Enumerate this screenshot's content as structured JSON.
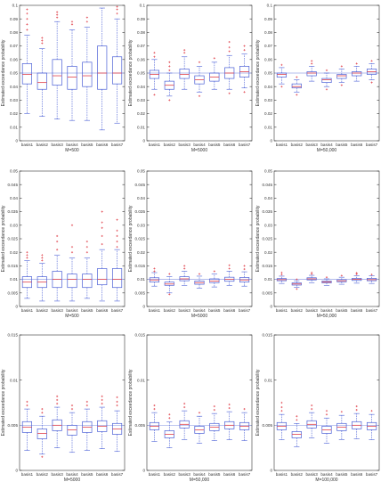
{
  "chart_data": [
    {
      "type": "boxplot",
      "row": 0,
      "col": 0,
      "ylabel": "Estimated exceedance probability",
      "xlabel": "M=500",
      "ylim": [
        0,
        0.1
      ],
      "yticks": [
        "0",
        "0.01",
        "0.02",
        "0.03",
        "0.04",
        "0.05",
        "0.06",
        "0.07",
        "0.08",
        "0.09",
        "0.1"
      ],
      "reference_line": 0.05,
      "categories": [
        "basis1",
        "basis2",
        "basis3",
        "basis4",
        "basis5",
        "basis6",
        "basis7"
      ],
      "boxes": [
        {
          "min": 0.02,
          "q1": 0.042,
          "median": 0.049,
          "q3": 0.057,
          "max": 0.078,
          "outliers": [
            0.082,
            0.086,
            0.09,
            0.094,
            0.097
          ]
        },
        {
          "min": 0.018,
          "q1": 0.038,
          "median": 0.043,
          "q3": 0.05,
          "max": 0.068,
          "outliers": [
            0.072,
            0.074,
            0.076
          ]
        },
        {
          "min": 0.016,
          "q1": 0.041,
          "median": 0.048,
          "q3": 0.06,
          "max": 0.088,
          "outliers": [
            0.091,
            0.093,
            0.095
          ]
        },
        {
          "min": 0.015,
          "q1": 0.038,
          "median": 0.047,
          "q3": 0.055,
          "max": 0.082,
          "outliers": [
            0.086,
            0.088
          ]
        },
        {
          "min": 0.015,
          "q1": 0.04,
          "median": 0.048,
          "q3": 0.058,
          "max": 0.084,
          "outliers": [
            0.088,
            0.091
          ]
        },
        {
          "min": 0.008,
          "q1": 0.038,
          "median": 0.05,
          "q3": 0.07,
          "max": 0.098,
          "outliers": []
        },
        {
          "min": 0.013,
          "q1": 0.042,
          "median": 0.05,
          "q3": 0.062,
          "max": 0.09,
          "outliers": [
            0.094,
            0.097,
            0.099
          ]
        }
      ]
    },
    {
      "type": "boxplot",
      "row": 0,
      "col": 1,
      "ylabel": "Estimated exceedance probability",
      "xlabel": "M=5000",
      "ylim": [
        0,
        0.1
      ],
      "yticks": [
        "0",
        "0.01",
        "0.02",
        "0.03",
        "0.04",
        "0.05",
        "0.06",
        "0.07",
        "0.08",
        "0.09",
        "0.1"
      ],
      "reference_line": 0.05,
      "categories": [
        "basis1",
        "basis2",
        "basis3",
        "basis4",
        "basis5",
        "basis6",
        "basis7"
      ],
      "boxes": [
        {
          "min": 0.038,
          "q1": 0.046,
          "median": 0.049,
          "q3": 0.052,
          "max": 0.06,
          "outliers": [
            0.034,
            0.062,
            0.065
          ]
        },
        {
          "min": 0.033,
          "q1": 0.038,
          "median": 0.041,
          "q3": 0.044,
          "max": 0.05,
          "outliers": [
            0.03,
            0.052,
            0.055,
            0.058
          ]
        },
        {
          "min": 0.038,
          "q1": 0.046,
          "median": 0.049,
          "q3": 0.053,
          "max": 0.062,
          "outliers": [
            0.065,
            0.067
          ]
        },
        {
          "min": 0.036,
          "q1": 0.042,
          "median": 0.045,
          "q3": 0.048,
          "max": 0.055,
          "outliers": [
            0.033,
            0.058
          ]
        },
        {
          "min": 0.038,
          "q1": 0.044,
          "median": 0.047,
          "q3": 0.05,
          "max": 0.058,
          "outliers": [
            0.061
          ]
        },
        {
          "min": 0.038,
          "q1": 0.046,
          "median": 0.05,
          "q3": 0.054,
          "max": 0.063,
          "outliers": [
            0.035,
            0.066,
            0.069,
            0.073
          ]
        },
        {
          "min": 0.039,
          "q1": 0.047,
          "median": 0.051,
          "q3": 0.055,
          "max": 0.064,
          "outliers": [
            0.036,
            0.067,
            0.07
          ]
        }
      ]
    },
    {
      "type": "boxplot",
      "row": 0,
      "col": 2,
      "ylabel": "Estimated exceedance probability",
      "xlabel": "M=50,000",
      "ylim": [
        0,
        0.1
      ],
      "yticks": [
        "0",
        "0.01",
        "0.02",
        "0.03",
        "0.04",
        "0.05",
        "0.06",
        "0.07",
        "0.08",
        "0.09",
        "0.1"
      ],
      "reference_line": 0.05,
      "categories": [
        "basis1",
        "basis2",
        "basis3",
        "basis4",
        "basis5",
        "basis6",
        "basis7"
      ],
      "boxes": [
        {
          "min": 0.042,
          "q1": 0.047,
          "median": 0.049,
          "q3": 0.05,
          "max": 0.054,
          "outliers": [
            0.04,
            0.056
          ]
        },
        {
          "min": 0.036,
          "q1": 0.039,
          "median": 0.04,
          "q3": 0.042,
          "max": 0.045,
          "outliers": [
            0.034,
            0.047
          ]
        },
        {
          "min": 0.044,
          "q1": 0.048,
          "median": 0.05,
          "q3": 0.051,
          "max": 0.055,
          "outliers": [
            0.057,
            0.059
          ]
        },
        {
          "min": 0.04,
          "q1": 0.043,
          "median": 0.045,
          "q3": 0.046,
          "max": 0.05,
          "outliers": [
            0.038,
            0.052
          ]
        },
        {
          "min": 0.043,
          "q1": 0.046,
          "median": 0.048,
          "q3": 0.049,
          "max": 0.053,
          "outliers": [
            0.041,
            0.055
          ]
        },
        {
          "min": 0.044,
          "q1": 0.048,
          "median": 0.05,
          "q3": 0.051,
          "max": 0.055,
          "outliers": [
            0.057
          ]
        },
        {
          "min": 0.045,
          "q1": 0.049,
          "median": 0.051,
          "q3": 0.053,
          "max": 0.057,
          "outliers": [
            0.043,
            0.059
          ]
        }
      ]
    },
    {
      "type": "boxplot",
      "row": 1,
      "col": 0,
      "ylabel": "Estimated exceedance probability",
      "xlabel": "M=500",
      "ylim": [
        0,
        0.05
      ],
      "yticks": [
        "0",
        "0.005",
        "0.01",
        "0.015",
        "0.02",
        "0.025",
        "0.03",
        "0.035",
        "0.04",
        "0.045",
        "0.05"
      ],
      "reference_line": 0.01,
      "categories": [
        "basis1",
        "basis2",
        "basis3",
        "basis4",
        "basis5",
        "basis6",
        "basis7"
      ],
      "boxes": [
        {
          "min": 0.003,
          "q1": 0.007,
          "median": 0.009,
          "q3": 0.011,
          "max": 0.017,
          "outliers": [
            0.018,
            0.019,
            0.02
          ]
        },
        {
          "min": 0.002,
          "q1": 0.007,
          "median": 0.009,
          "q3": 0.011,
          "max": 0.016,
          "outliers": [
            0.017,
            0.018,
            0.019
          ]
        },
        {
          "min": 0.002,
          "q1": 0.007,
          "median": 0.01,
          "q3": 0.013,
          "max": 0.019,
          "outliers": [
            0.021,
            0.024,
            0.026
          ]
        },
        {
          "min": 0.002,
          "q1": 0.007,
          "median": 0.01,
          "q3": 0.012,
          "max": 0.018,
          "outliers": [
            0.02,
            0.022,
            0.03
          ]
        },
        {
          "min": 0.003,
          "q1": 0.007,
          "median": 0.01,
          "q3": 0.012,
          "max": 0.018,
          "outliers": [
            0.02,
            0.022,
            0.024
          ]
        },
        {
          "min": 0.002,
          "q1": 0.008,
          "median": 0.01,
          "q3": 0.014,
          "max": 0.021,
          "outliers": [
            0.023,
            0.026,
            0.029,
            0.031,
            0.035
          ]
        },
        {
          "min": 0.002,
          "q1": 0.007,
          "median": 0.01,
          "q3": 0.014,
          "max": 0.021,
          "outliers": [
            0.022,
            0.024,
            0.026,
            0.028,
            0.032
          ]
        }
      ]
    },
    {
      "type": "boxplot",
      "row": 1,
      "col": 1,
      "ylabel": "Estimated exceedance probability",
      "xlabel": "M=5000",
      "ylim": [
        0,
        0.05
      ],
      "yticks": [
        "0",
        "0.005",
        "0.01",
        "0.015",
        "0.02",
        "0.025",
        "0.03",
        "0.035",
        "0.04",
        "0.045",
        "0.05"
      ],
      "reference_line": 0.01,
      "categories": [
        "basis1",
        "basis2",
        "basis3",
        "basis4",
        "basis5",
        "basis6",
        "basis7"
      ],
      "boxes": [
        {
          "min": 0.0075,
          "q1": 0.009,
          "median": 0.0098,
          "q3": 0.0106,
          "max": 0.0125,
          "outliers": [
            0.013,
            0.014
          ]
        },
        {
          "min": 0.005,
          "q1": 0.0078,
          "median": 0.0083,
          "q3": 0.009,
          "max": 0.011,
          "outliers": [
            0.0045,
            0.012
          ]
        },
        {
          "min": 0.0078,
          "q1": 0.0095,
          "median": 0.0102,
          "q3": 0.011,
          "max": 0.013,
          "outliers": [
            0.014,
            0.015
          ]
        },
        {
          "min": 0.0068,
          "q1": 0.0082,
          "median": 0.0088,
          "q3": 0.0094,
          "max": 0.0112,
          "outliers": [
            0.012
          ]
        },
        {
          "min": 0.0072,
          "q1": 0.0088,
          "median": 0.0094,
          "q3": 0.0102,
          "max": 0.012,
          "outliers": [
            0.013
          ]
        },
        {
          "min": 0.0078,
          "q1": 0.0093,
          "median": 0.01,
          "q3": 0.0108,
          "max": 0.013,
          "outliers": [
            0.014,
            0.0152
          ]
        },
        {
          "min": 0.0075,
          "q1": 0.009,
          "median": 0.0098,
          "q3": 0.0107,
          "max": 0.0128,
          "outliers": [
            0.0138,
            0.015
          ]
        }
      ]
    },
    {
      "type": "boxplot",
      "row": 1,
      "col": 2,
      "ylabel": "Estimated exceedance probability",
      "xlabel": "M=50,000",
      "ylim": [
        0,
        0.05
      ],
      "yticks": [
        "0",
        "0.005",
        "0.01",
        "0.015",
        "0.02",
        "0.025",
        "0.03",
        "0.035",
        "0.04",
        "0.045",
        "0.05"
      ],
      "reference_line": 0.01,
      "categories": [
        "basis1",
        "basis2",
        "basis3",
        "basis4",
        "basis5",
        "basis6",
        "basis7"
      ],
      "boxes": [
        {
          "min": 0.0085,
          "q1": 0.0095,
          "median": 0.0099,
          "q3": 0.0103,
          "max": 0.0112,
          "outliers": [
            0.0118,
            0.0125
          ]
        },
        {
          "min": 0.007,
          "q1": 0.0079,
          "median": 0.0083,
          "q3": 0.0087,
          "max": 0.0095,
          "outliers": [
            0.0065,
            0.01
          ]
        },
        {
          "min": 0.0088,
          "q1": 0.0098,
          "median": 0.0102,
          "q3": 0.0106,
          "max": 0.0115,
          "outliers": [
            0.012,
            0.0125
          ]
        },
        {
          "min": 0.0078,
          "q1": 0.0087,
          "median": 0.009,
          "q3": 0.0094,
          "max": 0.0102,
          "outliers": [
            0.0108
          ]
        },
        {
          "min": 0.0082,
          "q1": 0.0091,
          "median": 0.0095,
          "q3": 0.0099,
          "max": 0.0108,
          "outliers": [
            0.0114
          ]
        },
        {
          "min": 0.0086,
          "q1": 0.0096,
          "median": 0.01,
          "q3": 0.0104,
          "max": 0.0113,
          "outliers": [
            0.0119,
            0.0124
          ]
        },
        {
          "min": 0.0085,
          "q1": 0.0095,
          "median": 0.0099,
          "q3": 0.0104,
          "max": 0.0113,
          "outliers": [
            0.0118
          ]
        }
      ]
    },
    {
      "type": "boxplot",
      "row": 2,
      "col": 0,
      "ylabel": "Estimated exceedance probability",
      "xlabel": "M=5000",
      "ylim": [
        0,
        0.015
      ],
      "yticks": [
        "0",
        "0.005",
        "0.01",
        "0.015"
      ],
      "reference_line": 0.005,
      "categories": [
        "basis1",
        "basis2",
        "basis3",
        "basis4",
        "basis5",
        "basis6",
        "basis7"
      ],
      "boxes": [
        {
          "min": 0.0022,
          "q1": 0.0042,
          "median": 0.0048,
          "q3": 0.0054,
          "max": 0.0068,
          "outliers": [
            0.0072,
            0.0076
          ]
        },
        {
          "min": 0.0018,
          "q1": 0.0035,
          "median": 0.0041,
          "q3": 0.0046,
          "max": 0.006,
          "outliers": [
            0.0015,
            0.0064,
            0.0068
          ]
        },
        {
          "min": 0.0025,
          "q1": 0.0044,
          "median": 0.005,
          "q3": 0.0056,
          "max": 0.007,
          "outliers": [
            0.0074,
            0.0078,
            0.0082
          ]
        },
        {
          "min": 0.002,
          "q1": 0.0039,
          "median": 0.0045,
          "q3": 0.005,
          "max": 0.0064,
          "outliers": [
            0.0068,
            0.0072
          ]
        },
        {
          "min": 0.0022,
          "q1": 0.0042,
          "median": 0.0048,
          "q3": 0.0054,
          "max": 0.0068,
          "outliers": [
            0.0072,
            0.0076
          ]
        },
        {
          "min": 0.0024,
          "q1": 0.0043,
          "median": 0.0049,
          "q3": 0.0055,
          "max": 0.007,
          "outliers": [
            0.0074,
            0.0078,
            0.0082
          ]
        },
        {
          "min": 0.0021,
          "q1": 0.004,
          "median": 0.0046,
          "q3": 0.0052,
          "max": 0.0066,
          "outliers": [
            0.0072,
            0.0076,
            0.0081
          ]
        }
      ]
    },
    {
      "type": "boxplot",
      "row": 2,
      "col": 1,
      "ylabel": "Estimated exceedance probability",
      "xlabel": "M=50,000",
      "ylim": [
        0,
        0.015
      ],
      "yticks": [
        "0",
        "0.005",
        "0.01",
        "0.015"
      ],
      "reference_line": 0.005,
      "categories": [
        "basis1",
        "basis2",
        "basis3",
        "basis4",
        "basis5",
        "basis6",
        "basis7"
      ],
      "boxes": [
        {
          "min": 0.0032,
          "q1": 0.0045,
          "median": 0.0049,
          "q3": 0.0053,
          "max": 0.0064,
          "outliers": [
            0.0068,
            0.0072
          ]
        },
        {
          "min": 0.0025,
          "q1": 0.0036,
          "median": 0.004,
          "q3": 0.0044,
          "max": 0.0054,
          "outliers": [
            0.0058,
            0.0062
          ]
        },
        {
          "min": 0.0034,
          "q1": 0.0047,
          "median": 0.0051,
          "q3": 0.0055,
          "max": 0.0066,
          "outliers": [
            0.007,
            0.0074
          ]
        },
        {
          "min": 0.003,
          "q1": 0.0041,
          "median": 0.0045,
          "q3": 0.0049,
          "max": 0.006,
          "outliers": [
            0.0064
          ]
        },
        {
          "min": 0.0033,
          "q1": 0.0044,
          "median": 0.0048,
          "q3": 0.0052,
          "max": 0.0063,
          "outliers": [
            0.0067,
            0.0071
          ]
        },
        {
          "min": 0.0034,
          "q1": 0.0046,
          "median": 0.005,
          "q3": 0.0054,
          "max": 0.0065,
          "outliers": [
            0.0069,
            0.0073
          ]
        },
        {
          "min": 0.0033,
          "q1": 0.0045,
          "median": 0.0049,
          "q3": 0.0053,
          "max": 0.0064,
          "outliers": [
            0.0068
          ]
        }
      ]
    },
    {
      "type": "boxplot",
      "row": 2,
      "col": 2,
      "ylabel": "Estimated exceedance probability",
      "xlabel": "M=100,000",
      "ylim": [
        0,
        0.015
      ],
      "yticks": [
        "0",
        "0.005",
        "0.01",
        "0.015"
      ],
      "reference_line": 0.005,
      "categories": [
        "basis1",
        "basis2",
        "basis3",
        "basis4",
        "basis5",
        "basis6",
        "basis7"
      ],
      "boxes": [
        {
          "min": 0.0034,
          "q1": 0.0045,
          "median": 0.0049,
          "q3": 0.0053,
          "max": 0.0062,
          "outliers": [
            0.0066,
            0.007,
            0.0075
          ]
        },
        {
          "min": 0.0026,
          "q1": 0.0036,
          "median": 0.004,
          "q3": 0.0043,
          "max": 0.0052,
          "outliers": [
            0.0056,
            0.006
          ]
        },
        {
          "min": 0.0036,
          "q1": 0.0047,
          "median": 0.0051,
          "q3": 0.0055,
          "max": 0.0064,
          "outliers": [
            0.0068,
            0.0072
          ]
        },
        {
          "min": 0.003,
          "q1": 0.0041,
          "median": 0.0045,
          "q3": 0.0049,
          "max": 0.0058,
          "outliers": [
            0.0062,
            0.0066
          ]
        },
        {
          "min": 0.0034,
          "q1": 0.0044,
          "median": 0.0048,
          "q3": 0.0052,
          "max": 0.0061,
          "outliers": [
            0.0065
          ]
        },
        {
          "min": 0.0035,
          "q1": 0.0046,
          "median": 0.005,
          "q3": 0.0054,
          "max": 0.0063,
          "outliers": [
            0.0067,
            0.0071
          ]
        },
        {
          "min": 0.0034,
          "q1": 0.0045,
          "median": 0.0049,
          "q3": 0.0053,
          "max": 0.0062,
          "outliers": [
            0.0066
          ]
        }
      ]
    }
  ],
  "colors": {
    "box": "#4a5fd6",
    "median": "#e0404a",
    "outlier": "#e0404a",
    "reference": "#9aa6e6",
    "axis": "#333333",
    "text": "#333333"
  }
}
